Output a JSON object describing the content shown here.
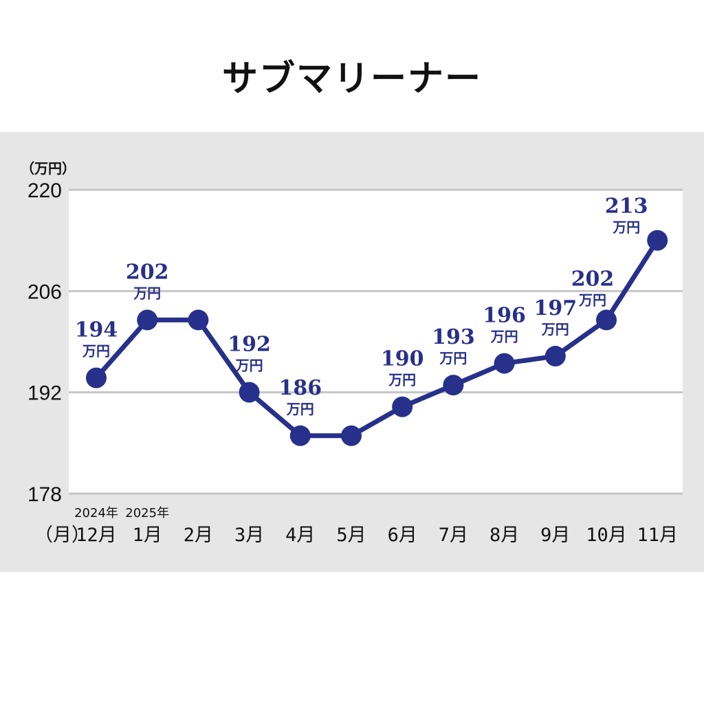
{
  "title": "サブマリーナー",
  "colors": {
    "series": "#27308a",
    "panel_background": "#e6e6e6",
    "plot_background": "#ffffff",
    "grid": "#c6c6c6"
  },
  "chart_data": {
    "type": "line",
    "title": "サブマリーナー",
    "y_unit_label": "（万円）",
    "x_unit_label": "（月）",
    "ylim": [
      178,
      220
    ],
    "yticks": [
      178,
      192,
      206,
      220
    ],
    "grid": true,
    "categories": [
      "12月",
      "1月",
      "2月",
      "3月",
      "4月",
      "5月",
      "6月",
      "7月",
      "8月",
      "9月",
      "10月",
      "11月"
    ],
    "year_labels": [
      {
        "category_index": 0,
        "text": "2024年"
      },
      {
        "category_index": 1,
        "text": "2025年"
      }
    ],
    "values": [
      194,
      202,
      202,
      192,
      186,
      186,
      190,
      193,
      196,
      197,
      202,
      213
    ],
    "data_labels": [
      {
        "index": 0,
        "value": "194",
        "unit": "万円"
      },
      {
        "index": 1,
        "value": "202",
        "unit": "万円"
      },
      {
        "index": 3,
        "value": "192",
        "unit": "万円"
      },
      {
        "index": 4,
        "value": "186",
        "unit": "万円"
      },
      {
        "index": 6,
        "value": "190",
        "unit": "万円"
      },
      {
        "index": 7,
        "value": "193",
        "unit": "万円"
      },
      {
        "index": 8,
        "value": "196",
        "unit": "万円"
      },
      {
        "index": 9,
        "value": "197",
        "unit": "万円"
      },
      {
        "index": 10,
        "value": "202",
        "unit": "万円"
      },
      {
        "index": 11,
        "value": "213",
        "unit": "万円"
      }
    ]
  }
}
